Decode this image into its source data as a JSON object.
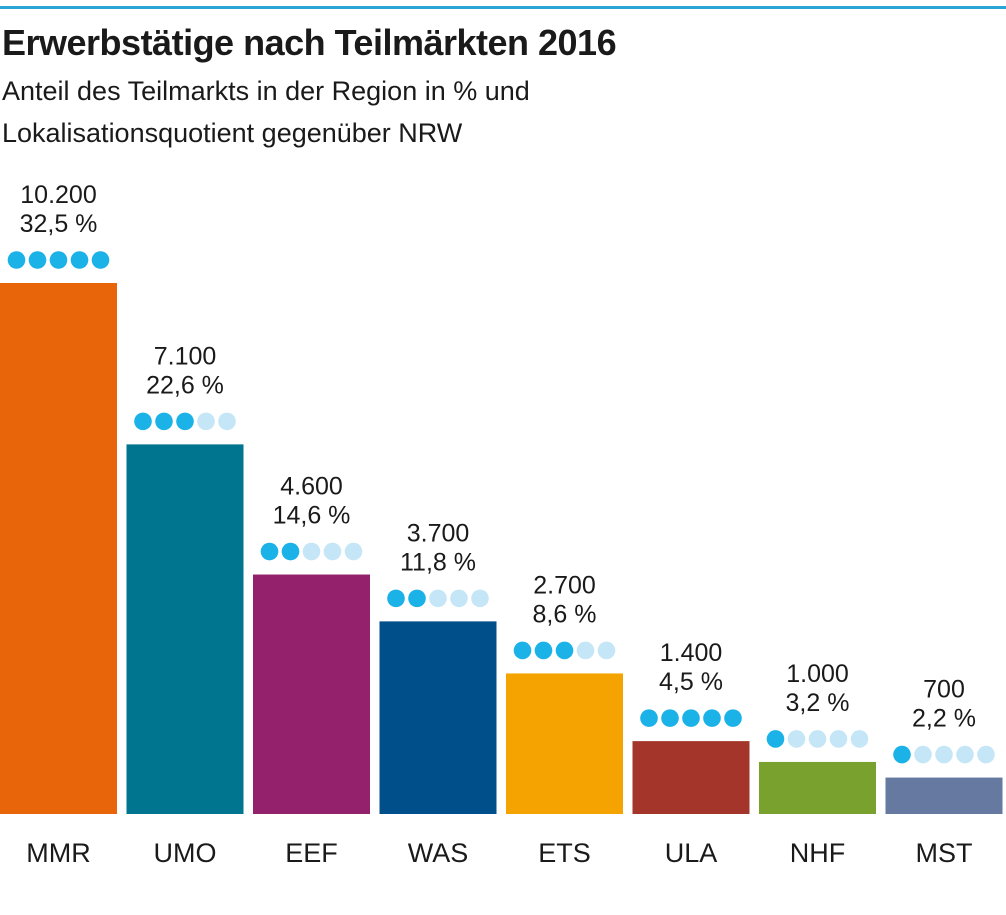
{
  "title": "Erwerbstätige nach Teilmärkten 2016",
  "subtitle": "Anteil des Teilmarkts in der Region in % und Lokalisationsquotient gegenüber NRW",
  "chart_data": {
    "type": "bar",
    "title": "Erwerbstätige nach Teilmärkten 2016",
    "subtitle": "Anteil des Teilmarkts in der Region in % und Lokalisationsquotient gegenüber NRW",
    "categories": [
      "MMR",
      "UMO",
      "EEF",
      "WAS",
      "ETS",
      "ULA",
      "NHF",
      "MST"
    ],
    "values": [
      10200,
      7100,
      4600,
      3700,
      2700,
      1400,
      1000,
      700
    ],
    "value_labels": [
      "10.200",
      "7.100",
      "4.600",
      "3.700",
      "2.700",
      "1.400",
      "1.000",
      "700"
    ],
    "percent_labels": [
      "32,5 %",
      "22,6 %",
      "14,6 %",
      "11,8 %",
      "8,6 %",
      "4,5 %",
      "3,2 %",
      "2,2 %"
    ],
    "lq_dots_filled": [
      5,
      3,
      2,
      2,
      3,
      5,
      1,
      1
    ],
    "lq_dots_max": 5,
    "colors": [
      "#e8650a",
      "#00758f",
      "#93216b",
      "#004f8a",
      "#f5a300",
      "#a4352a",
      "#79a12e",
      "#6679a1"
    ],
    "dot_color_filled": "#1bb2e8",
    "dot_color_empty": "#c5e6f7",
    "xlabel": "",
    "ylabel": "",
    "ylim": [
      0,
      10200
    ],
    "grid": false,
    "legend": "none"
  }
}
